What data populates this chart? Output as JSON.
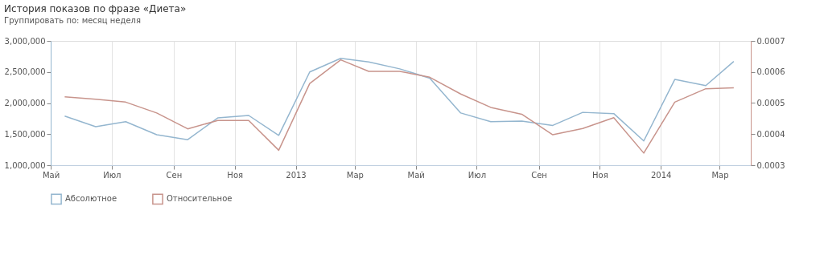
{
  "chart_data": {
    "type": "line",
    "title": "История показов по фразе «Диета»",
    "annotations": [
      "Группировать по:",
      "месяц",
      "неделя"
    ],
    "x": [
      "2012-05-15",
      "2012-06-15",
      "2012-07-15",
      "2012-08-15",
      "2012-09-15",
      "2012-10-15",
      "2012-11-15",
      "2012-12-15",
      "2013-01-15",
      "2013-02-15",
      "2013-03-15",
      "2013-04-15",
      "2013-05-15",
      "2013-06-15",
      "2013-07-15",
      "2013-08-15",
      "2013-09-15",
      "2013-10-15",
      "2013-11-15",
      "2013-12-15",
      "2014-01-15",
      "2014-02-15",
      "2014-03-15"
    ],
    "series": [
      {
        "name": "Абсолютное",
        "color": "#94b6cf",
        "values": [
          1790000,
          1620000,
          1700000,
          1490000,
          1410000,
          1760000,
          1800000,
          1480000,
          2500000,
          2720000,
          2660000,
          2550000,
          2400000,
          1840000,
          1700000,
          1710000,
          1640000,
          1850000,
          1830000,
          1390000,
          2380000,
          2280000,
          2670000
        ]
      },
      {
        "name": "Относительное",
        "color": "#c8948c",
        "axis": "y2",
        "values": [
          0.00052,
          0.000512,
          0.000503,
          0.000468,
          0.000417,
          0.000444,
          0.000444,
          0.000348,
          0.000563,
          0.000639,
          0.000602,
          0.000602,
          0.000583,
          0.000529,
          0.000486,
          0.000464,
          0.000398,
          0.000418,
          0.000453,
          0.000339,
          0.000503,
          0.000546,
          0.000549
        ]
      }
    ],
    "xlim": [
      "2012-05-01",
      "2014-04-01"
    ],
    "xticks": [
      {
        "value": "2012-05-01",
        "label": "Май"
      },
      {
        "value": "2012-07-01",
        "label": "Июл"
      },
      {
        "value": "2012-09-01",
        "label": "Сен"
      },
      {
        "value": "2012-11-01",
        "label": "Ноя"
      },
      {
        "value": "2013-01-01",
        "label": "2013"
      },
      {
        "value": "2013-03-01",
        "label": "Мар"
      },
      {
        "value": "2013-05-01",
        "label": "Май"
      },
      {
        "value": "2013-07-01",
        "label": "Июл"
      },
      {
        "value": "2013-09-01",
        "label": "Сен"
      },
      {
        "value": "2013-11-01",
        "label": "Ноя"
      },
      {
        "value": "2014-01-01",
        "label": "2014"
      },
      {
        "value": "2014-03-01",
        "label": "Мар"
      }
    ],
    "ylim": [
      1000000,
      3000000
    ],
    "yticks": [
      {
        "value": 1000000,
        "label": "1,000,000"
      },
      {
        "value": 1500000,
        "label": "1,500,000"
      },
      {
        "value": 2000000,
        "label": "2,000,000"
      },
      {
        "value": 2500000,
        "label": "2,500,000"
      },
      {
        "value": 3000000,
        "label": "3,000,000"
      }
    ],
    "y2lim": [
      0.0003,
      0.0007
    ],
    "y2ticks": [
      0.0003,
      0.0004,
      0.0005,
      0.0006,
      0.0007
    ],
    "grid": "x",
    "legend": "bottom left",
    "marker": "none",
    "line_style": "solid"
  }
}
